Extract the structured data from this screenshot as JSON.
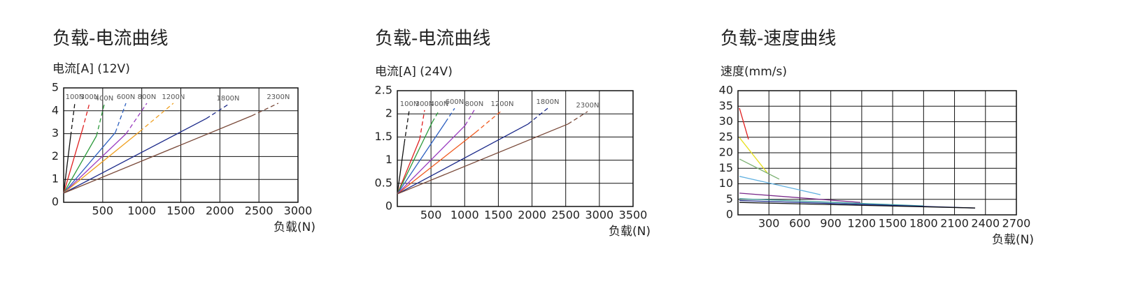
{
  "chart_data": [
    {
      "type": "line",
      "title": "负载-电流曲线",
      "y_label": "电流[A] (12V)",
      "x_label": "负载(N)",
      "xlim": [
        0,
        3000
      ],
      "ylim": [
        0,
        5
      ],
      "xticks": [
        500,
        1000,
        1500,
        2000,
        2500,
        3000
      ],
      "yticks": [
        0,
        1,
        2,
        3,
        4,
        5
      ],
      "grid": true,
      "dashed_last_segment": true,
      "series": [
        {
          "name": "100N",
          "color": "#111111",
          "x": [
            0,
            90,
            143
          ],
          "values": [
            0.4,
            2.9,
            4.33
          ]
        },
        {
          "name": "300N",
          "color": "#e02020",
          "x": [
            0,
            242,
            331
          ],
          "values": [
            0.4,
            3.2,
            4.33
          ]
        },
        {
          "name": "400N",
          "color": "#2a9a3a",
          "x": [
            0,
            420,
            519
          ],
          "values": [
            0.4,
            2.9,
            4.27
          ]
        },
        {
          "name": "600N",
          "color": "#2c5fc0",
          "x": [
            0,
            662,
            797
          ],
          "values": [
            0.4,
            3.05,
            4.33
          ]
        },
        {
          "name": "800N",
          "color": "#9a3cc0",
          "x": [
            0,
            800,
            1065
          ],
          "values": [
            0.4,
            3.0,
            4.33
          ]
        },
        {
          "name": "1200N",
          "color": "#f0a020",
          "x": [
            0,
            976,
            1405
          ],
          "values": [
            0.4,
            3.1,
            4.33
          ]
        },
        {
          "name": "1800N",
          "color": "#1c2a8a",
          "x": [
            0,
            1826,
            2104
          ],
          "values": [
            0.4,
            3.66,
            4.27
          ]
        },
        {
          "name": "2300N",
          "color": "#7a4a3a",
          "x": [
            0,
            2408,
            2748
          ],
          "values": [
            0.4,
            3.78,
            4.33
          ]
        }
      ]
    },
    {
      "type": "line",
      "title": "负载-电流曲线",
      "y_label": "电流[A] (24V)",
      "x_label": "负载(N)",
      "xlim": [
        0,
        3500
      ],
      "ylim": [
        0,
        2.5
      ],
      "xticks": [
        500,
        1000,
        1500,
        2000,
        2500,
        3000,
        3500
      ],
      "yticks": [
        0,
        0.5,
        1,
        1.5,
        2,
        2.5
      ],
      "grid": true,
      "dashed_last_segment": true,
      "series": [
        {
          "name": "100N",
          "color": "#111111",
          "x": [
            0,
            104,
            177
          ],
          "values": [
            0.27,
            1.37,
            2.08
          ]
        },
        {
          "name": "300N",
          "color": "#e02020",
          "x": [
            0,
            332,
            405
          ],
          "values": [
            0.27,
            1.45,
            2.08
          ]
        },
        {
          "name": "400N",
          "color": "#2a9a3a",
          "x": [
            0,
            519,
            623
          ],
          "values": [
            0.27,
            1.82,
            2.08
          ]
        },
        {
          "name": "600N",
          "color": "#2c5fc0",
          "x": [
            0,
            716,
            851
          ],
          "values": [
            0.27,
            1.82,
            2.12
          ]
        },
        {
          "name": "800N",
          "color": "#9a3cc0",
          "x": [
            0,
            1007,
            1142
          ],
          "values": [
            0.27,
            1.75,
            2.08
          ]
        },
        {
          "name": "1200N",
          "color": "#f05a20",
          "x": [
            0,
            1163,
            1558
          ],
          "values": [
            0.27,
            1.6,
            2.08
          ]
        },
        {
          "name": "1800N",
          "color": "#1c2a8a",
          "x": [
            0,
            1942,
            2233
          ],
          "values": [
            0.27,
            1.78,
            2.12
          ]
        },
        {
          "name": "2300N",
          "color": "#7a4a3a",
          "x": [
            0,
            2534,
            2825
          ],
          "values": [
            0.27,
            1.78,
            2.05
          ]
        }
      ]
    },
    {
      "type": "line",
      "title": "负载-速度曲线",
      "y_label": "速度(mm/s)",
      "x_label": "负载(N)",
      "xlim": [
        0,
        2700
      ],
      "ylim": [
        0,
        40
      ],
      "xticks": [
        300,
        600,
        900,
        1200,
        1500,
        1800,
        2100,
        2400,
        2700
      ],
      "yticks": [
        0,
        5,
        10,
        15,
        20,
        25,
        30,
        35,
        40
      ],
      "grid": true,
      "dashed_last_segment": false,
      "series": [
        {
          "color": "#e02020",
          "x": [
            14,
            102
          ],
          "values": [
            34.4,
            24.3
          ]
        },
        {
          "color": "#e8e020",
          "x": [
            14,
            285
          ],
          "values": [
            24.9,
            13.5
          ]
        },
        {
          "color": "#7ab070",
          "x": [
            14,
            400
          ],
          "values": [
            18,
            11.5
          ]
        },
        {
          "color": "#60b0e0",
          "x": [
            14,
            800
          ],
          "values": [
            12.4,
            6.5
          ]
        },
        {
          "color": "#7a2a8a",
          "x": [
            14,
            1187
          ],
          "values": [
            7,
            4
          ]
        },
        {
          "color": "#40a0a0",
          "x": [
            14,
            1800
          ],
          "values": [
            5.2,
            2.9
          ]
        },
        {
          "color": "#1c2a8a",
          "x": [
            14,
            2300
          ],
          "values": [
            4.6,
            2.2
          ]
        },
        {
          "color": "#111111",
          "x": [
            14,
            2300
          ],
          "values": [
            4.0,
            2.2
          ]
        }
      ]
    }
  ]
}
